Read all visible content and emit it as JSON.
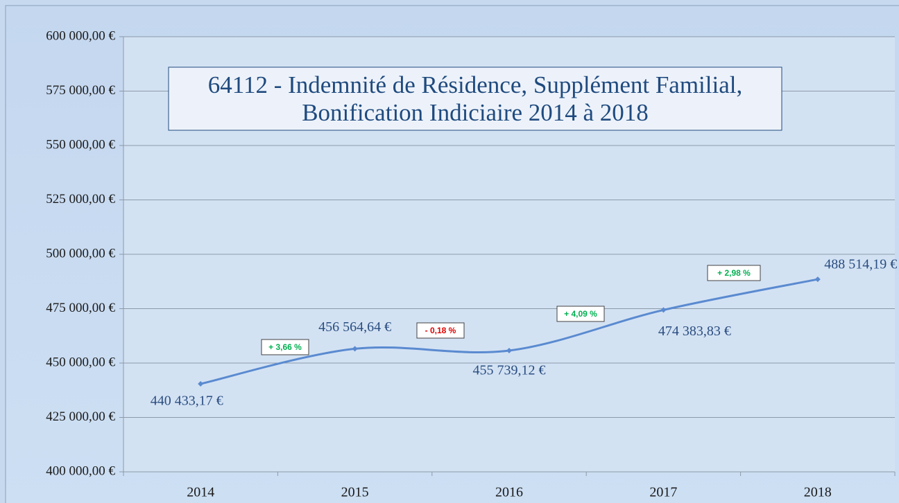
{
  "chart_data": {
    "type": "line",
    "title": [
      "64112 - Indemnité de Résidence, Supplément Familial,",
      "Bonification Indiciaire  2014 à 2018"
    ],
    "categories": [
      "2014",
      "2015",
      "2016",
      "2017",
      "2018"
    ],
    "series": [
      {
        "name": null,
        "color": "#5a8ad0",
        "values": [
          440433.17,
          456564.64,
          455739.12,
          474383.83,
          488514.19
        ],
        "value_labels": [
          "440 433,17 €",
          "456 564,64 €",
          "455 739,12 €",
          "474 383,83 €",
          "488 514,19 €"
        ]
      }
    ],
    "ylim": [
      400000,
      600000
    ],
    "yticks": [
      {
        "value": 400000,
        "label": "400 000,00 €"
      },
      {
        "value": 425000,
        "label": "425 000,00 €"
      },
      {
        "value": 450000,
        "label": "450 000,00 €"
      },
      {
        "value": 475000,
        "label": "475 000,00 €"
      },
      {
        "value": 500000,
        "label": "500 000,00 €"
      },
      {
        "value": 525000,
        "label": "525 000,00 €"
      },
      {
        "value": 550000,
        "label": "550 000,00 €"
      },
      {
        "value": 575000,
        "label": "575 000,00 €"
      },
      {
        "value": 600000,
        "label": "600 000,00 €"
      }
    ],
    "grid": true,
    "annotations": [
      {
        "text": "+ 3,66 %",
        "color": "#00b050"
      },
      {
        "text": "- 0,18 %",
        "color": "#e00000"
      },
      {
        "text": "+ 4,09 %",
        "color": "#00b050"
      },
      {
        "text": "+ 2,98 %",
        "color": "#00b050"
      }
    ]
  }
}
